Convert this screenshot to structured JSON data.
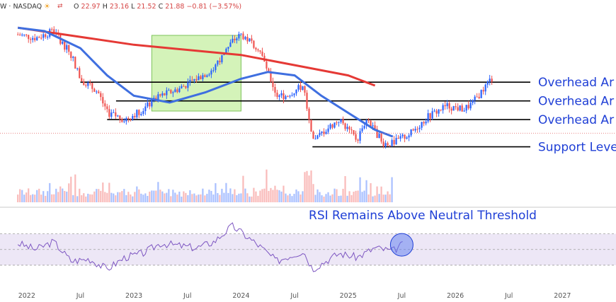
{
  "header": {
    "symbol": "W · NASDAQ",
    "open_label": "O",
    "open": "22.97",
    "high_label": "H",
    "high": "23.16",
    "low_label": "L",
    "low": "21.52",
    "close_label": "C",
    "close": "21.88",
    "change": "−0.81 (−3.57%)",
    "sun_icon": "sun-icon",
    "dividend_icon": "events-icon"
  },
  "annotations": {
    "overhead_1": "Overhead Ar",
    "overhead_2": "Overhead Ar",
    "overhead_3": "Overhead Ar",
    "support": "Support Leve",
    "rsi_title": "RSI Remains Above Neutral Threshold"
  },
  "colors": {
    "up": "#2962ff",
    "down": "#ef5350",
    "ma_slow": "#e53935",
    "ma_fast": "#3f6fe0",
    "rsi_line": "#7e57c2",
    "rsi_band": "#ede7f6",
    "highlight": "#c9f0a8",
    "label": "#1f3fd6"
  },
  "chart_data": {
    "type": "candlestick",
    "x_axis_labels": [
      "2022",
      "Jul",
      "2023",
      "Jul",
      "2024",
      "Jul",
      "2025",
      "Jul",
      "2026",
      "Jul",
      "2027"
    ],
    "horizontal_levels": [
      {
        "label": "Overhead Ar",
        "price": 44.0
      },
      {
        "label": "Overhead Ar",
        "price": 38.5
      },
      {
        "label": "Overhead Ar",
        "price": 33.0
      },
      {
        "label": "Support Leve",
        "price": 25.0
      }
    ],
    "highlight_box": {
      "from": "2023-03",
      "to": "2024-01"
    },
    "price_path": [
      [
        "2021-12",
        58
      ],
      [
        "2022-02",
        57
      ],
      [
        "2022-04",
        59
      ],
      [
        "2022-06",
        52
      ],
      [
        "2022-07",
        45
      ],
      [
        "2022-09",
        41
      ],
      [
        "2022-10",
        35
      ],
      [
        "2022-12",
        33
      ],
      [
        "2023-02",
        36
      ],
      [
        "2023-04",
        40
      ],
      [
        "2023-06",
        42
      ],
      [
        "2023-08",
        45
      ],
      [
        "2023-10",
        48
      ],
      [
        "2023-12",
        56
      ],
      [
        "2024-01",
        58
      ],
      [
        "2024-03",
        54
      ],
      [
        "2024-05",
        40
      ],
      [
        "2024-06",
        40
      ],
      [
        "2024-08",
        43
      ],
      [
        "2024-09",
        26
      ],
      [
        "2024-10",
        29
      ],
      [
        "2024-12",
        33
      ],
      [
        "2025-02",
        27
      ],
      [
        "2025-03",
        33
      ],
      [
        "2025-05",
        26
      ],
      [
        "2025-06",
        26
      ],
      [
        "2025-08",
        29
      ],
      [
        "2025-10",
        34
      ],
      [
        "2025-12",
        37
      ],
      [
        "2026-02",
        36
      ],
      [
        "2026-03",
        38
      ],
      [
        "2026-05",
        45
      ]
    ],
    "ma_slow_path": [
      [
        "2021-12",
        60
      ],
      [
        "2023-01",
        55
      ],
      [
        "2024-01",
        52
      ],
      [
        "2024-07",
        49
      ],
      [
        "2025-01",
        46
      ],
      [
        "2025-04",
        43
      ]
    ],
    "ma_fast_path": [
      [
        "2021-12",
        60
      ],
      [
        "2022-03",
        59
      ],
      [
        "2022-07",
        54
      ],
      [
        "2022-10",
        46
      ],
      [
        "2023-01",
        40
      ],
      [
        "2023-05",
        38
      ],
      [
        "2023-09",
        41
      ],
      [
        "2024-01",
        45
      ],
      [
        "2024-04",
        47
      ],
      [
        "2024-07",
        46
      ],
      [
        "2024-10",
        40
      ],
      [
        "2025-01",
        35
      ],
      [
        "2025-04",
        30
      ],
      [
        "2025-06",
        28
      ]
    ],
    "rsi_path": [
      [
        "2021-12",
        58
      ],
      [
        "2022-02",
        50
      ],
      [
        "2022-04",
        60
      ],
      [
        "2022-06",
        35
      ],
      [
        "2022-08",
        38
      ],
      [
        "2022-10",
        25
      ],
      [
        "2022-12",
        40
      ],
      [
        "2023-02",
        45
      ],
      [
        "2023-04",
        58
      ],
      [
        "2023-06",
        55
      ],
      [
        "2023-08",
        52
      ],
      [
        "2023-10",
        60
      ],
      [
        "2023-12",
        80
      ],
      [
        "2024-01",
        72
      ],
      [
        "2024-03",
        55
      ],
      [
        "2024-05",
        35
      ],
      [
        "2024-06",
        40
      ],
      [
        "2024-08",
        48
      ],
      [
        "2024-09",
        25
      ],
      [
        "2024-10",
        32
      ],
      [
        "2024-12",
        45
      ],
      [
        "2025-02",
        40
      ],
      [
        "2025-04",
        52
      ],
      [
        "2025-06",
        48
      ],
      [
        "2025-07",
        56
      ]
    ],
    "rsi_levels": {
      "upper": 70,
      "middle": 50,
      "lower": 30
    },
    "rsi_marker": {
      "date": "2025-07",
      "value": 56
    },
    "date_range": [
      "2021-10",
      "2027-07"
    ],
    "price_range": [
      22,
      64
    ],
    "rsi_range": [
      20,
      85
    ]
  }
}
